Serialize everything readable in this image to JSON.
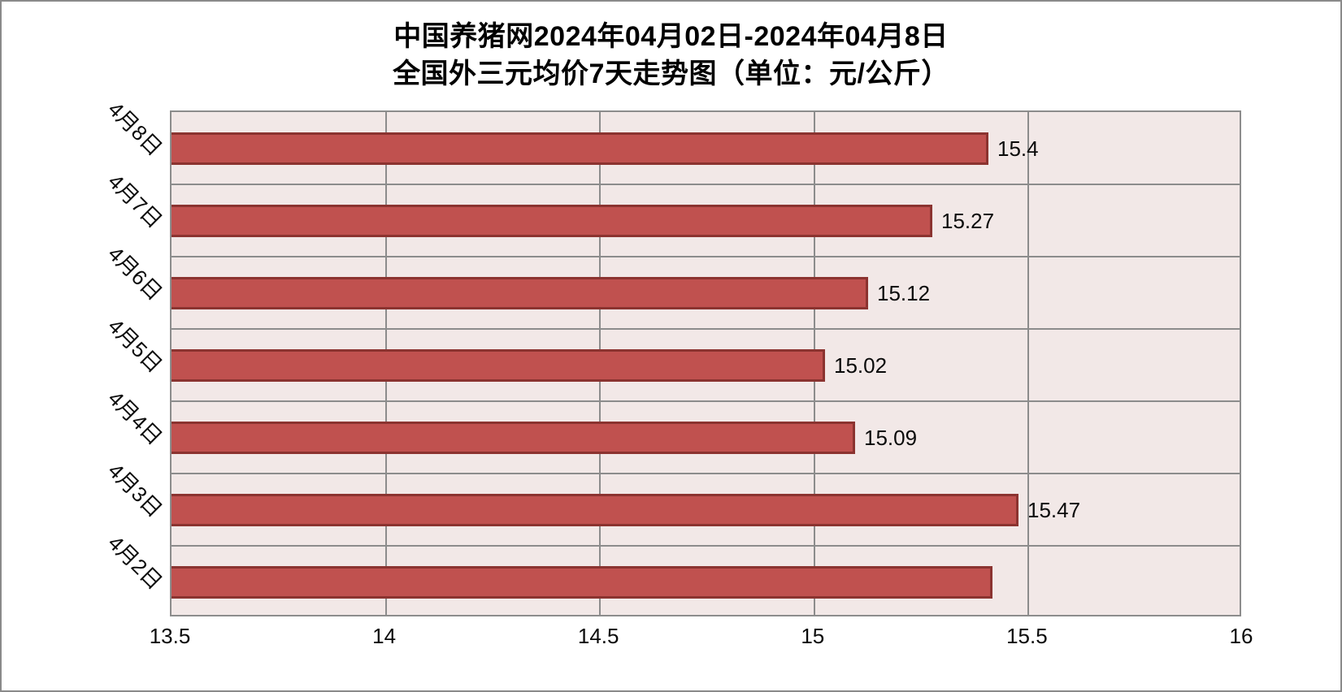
{
  "title": {
    "line1": "中国养猪网2024年04月02日-2024年04月8日",
    "line2": "全国外三元均价7天走势图（单位：元/公斤）"
  },
  "chart_data": {
    "type": "bar",
    "orientation": "horizontal",
    "title": "中国养猪网2024年04月02日-2024年04月8日 全国外三元均价7天走势图（单位：元/公斤）",
    "unit": "元/公斤",
    "categories": [
      "4月8日",
      "4月7日",
      "4月6日",
      "4月5日",
      "4月4日",
      "4月3日",
      "4月2日"
    ],
    "values": [
      15.4,
      15.27,
      15.12,
      15.02,
      15.09,
      15.47,
      15.41
    ],
    "data_labels": [
      "15.4",
      "15.27",
      "15.12",
      "15.02",
      "15.09",
      "15.47",
      ""
    ],
    "xlabel": "",
    "ylabel": "",
    "xlim": [
      13.5,
      16
    ],
    "x_ticks": [
      13.5,
      14,
      14.5,
      15,
      15.5,
      16
    ],
    "x_tick_labels": [
      "13.5",
      "14",
      "14.5",
      "15",
      "15.5",
      "16"
    ],
    "grid": true,
    "legend": false,
    "colors": {
      "bar_fill": "#C0514F",
      "bar_border": "#8B3330",
      "plot_bg": "#F2E8E7",
      "gridline": "#8C8C8C",
      "text": "#0A0A0A"
    }
  }
}
